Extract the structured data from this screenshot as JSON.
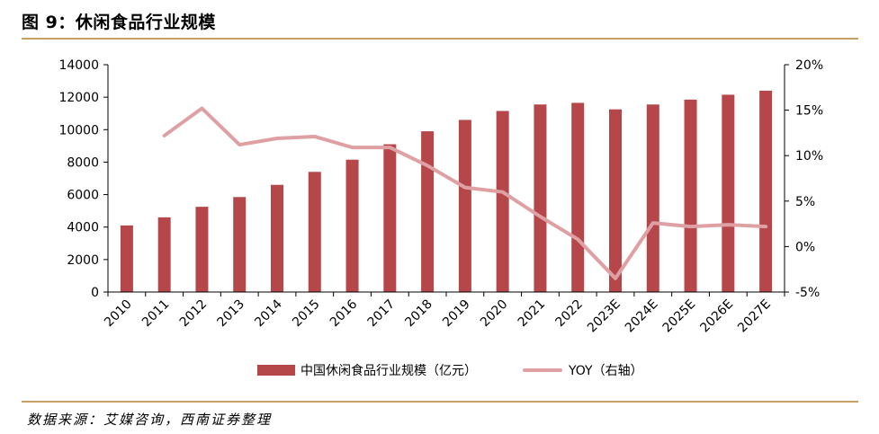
{
  "header": {
    "title": "图 9：休闲食品行业规模"
  },
  "footer": {
    "source": "数据来源：艾媒咨询，西南证券整理"
  },
  "colors": {
    "bar": "#b5474b",
    "line": "#dfa0a3",
    "rule": "#c8a064"
  },
  "chart_data": {
    "type": "bar",
    "categories": [
      "2010",
      "2011",
      "2012",
      "2013",
      "2014",
      "2015",
      "2016",
      "2017",
      "2018",
      "2019",
      "2020",
      "2021",
      "2022",
      "2023E",
      "2024E",
      "2025E",
      "2026E",
      "2027E"
    ],
    "series": [
      {
        "name": "中国休闲食品行业规模（亿元）",
        "type": "bar",
        "axis": "left",
        "values": [
          4100,
          4600,
          5250,
          5850,
          6600,
          7400,
          8150,
          9100,
          9900,
          10600,
          11150,
          11550,
          11650,
          11250,
          11550,
          11850,
          12150,
          12400
        ]
      },
      {
        "name": "YOY（右轴）",
        "type": "line",
        "axis": "right",
        "values": [
          null,
          12.2,
          15.2,
          11.2,
          11.9,
          12.1,
          10.9,
          10.9,
          8.9,
          6.5,
          6.0,
          3.3,
          0.8,
          -3.5,
          2.6,
          2.2,
          2.4,
          2.2
        ]
      }
    ],
    "y_left": {
      "min": 0,
      "max": 14000,
      "ticks": [
        "0",
        "2000",
        "4000",
        "6000",
        "8000",
        "10000",
        "12000",
        "14000"
      ]
    },
    "y_right": {
      "min": -5,
      "max": 20,
      "ticks": [
        "-5%",
        "0%",
        "5%",
        "10%",
        "15%",
        "20%"
      ]
    },
    "grid": false,
    "legend": "bottom"
  }
}
